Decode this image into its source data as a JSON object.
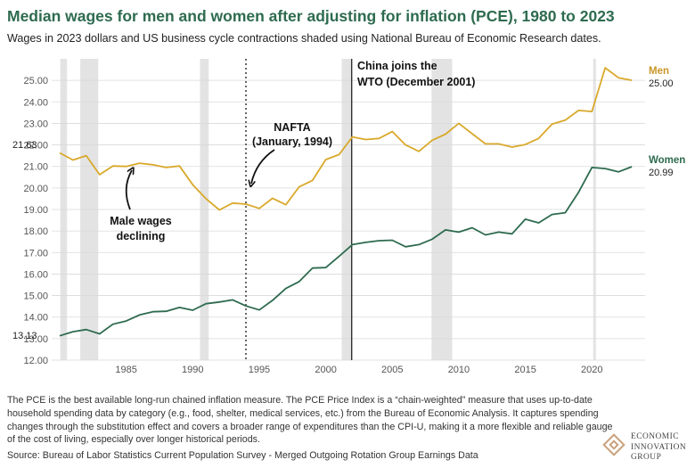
{
  "header": {
    "title": "Median wages for men and women after adjusting for inflation (PCE), 1980 to 2023",
    "subtitle": "Wages in 2023 dollars and US business cycle contractions shaded using National Bureau of Economic Research dates."
  },
  "chart_data": {
    "type": "line",
    "x": [
      1980,
      1981,
      1982,
      1983,
      1984,
      1985,
      1986,
      1987,
      1988,
      1989,
      1990,
      1991,
      1992,
      1993,
      1994,
      1995,
      1996,
      1997,
      1998,
      1999,
      2000,
      2001,
      2002,
      2003,
      2004,
      2005,
      2006,
      2007,
      2008,
      2009,
      2010,
      2011,
      2012,
      2013,
      2014,
      2015,
      2016,
      2017,
      2018,
      2019,
      2020,
      2021,
      2022,
      2023
    ],
    "series": [
      {
        "name": "Men",
        "color": "#d9a92b",
        "values": [
          21.63,
          21.3,
          21.5,
          20.62,
          21.02,
          21.0,
          21.15,
          21.08,
          20.95,
          21.02,
          20.15,
          19.5,
          18.98,
          19.3,
          19.25,
          19.05,
          19.52,
          19.22,
          20.05,
          20.35,
          21.32,
          21.55,
          22.37,
          22.25,
          22.3,
          22.62,
          22.0,
          21.7,
          22.22,
          22.5,
          23.0,
          22.52,
          22.05,
          22.05,
          21.9,
          22.02,
          22.3,
          22.97,
          23.15,
          23.6,
          23.55,
          25.58,
          25.12,
          25.0
        ]
      },
      {
        "name": "Women",
        "color": "#2e6b4f",
        "values": [
          13.13,
          13.32,
          13.42,
          13.22,
          13.67,
          13.82,
          14.1,
          14.25,
          14.27,
          14.45,
          14.32,
          14.62,
          14.7,
          14.8,
          14.52,
          14.33,
          14.78,
          15.33,
          15.65,
          16.28,
          16.3,
          16.82,
          17.37,
          17.47,
          17.55,
          17.57,
          17.27,
          17.37,
          17.62,
          18.05,
          17.95,
          18.15,
          17.82,
          17.95,
          17.87,
          18.55,
          18.38,
          18.77,
          18.85,
          19.8,
          20.95,
          20.9,
          20.75,
          20.99
        ]
      }
    ],
    "recessions": [
      [
        1980.05,
        1980.55
      ],
      [
        1981.55,
        1982.9
      ],
      [
        1990.55,
        1991.2
      ],
      [
        2001.2,
        2001.9
      ],
      [
        2007.95,
        2009.5
      ],
      [
        2020.1,
        2020.3
      ]
    ],
    "ylim": [
      12.0,
      26.0
    ],
    "xlim": [
      1979.4,
      2024.0
    ],
    "yticks": [
      "12.00",
      "13.00",
      "14.00",
      "15.00",
      "16.00",
      "17.00",
      "18.00",
      "19.00",
      "20.00",
      "21.00",
      "22.00",
      "23.00",
      "24.00",
      "25.00"
    ],
    "ytick_values": [
      12,
      13,
      14,
      15,
      16,
      17,
      18,
      19,
      20,
      21,
      22,
      23,
      24,
      25
    ],
    "xticks": [
      "1985",
      "1990",
      "1995",
      "2000",
      "2005",
      "2010",
      "2015",
      "2020"
    ],
    "xtick_values": [
      1985,
      1990,
      1995,
      2000,
      2005,
      2010,
      2015,
      2020
    ],
    "nafta_year": 1994,
    "wto_year": 2001.95,
    "labels": {
      "men_name": "Men",
      "men_end": "25.00",
      "women_name": "Women",
      "women_end": "20.99",
      "men_start": "21.63",
      "women_start": "13.13"
    },
    "annotations": {
      "wto_line1": "China joins the",
      "wto_line2": "WTO (December 2001)",
      "nafta_line1": "NAFTA",
      "nafta_line2": "(January, 1994)",
      "male_line1": "Male wages",
      "male_line2": "declining"
    }
  },
  "footer": {
    "note": "The PCE is the best available long-run chained inflation measure. The PCE Price Index is a “chain-weighted” measure that uses up-to-date household spending data by category (e.g., food, shelter, medical services, etc.) from the Bureau of Economic Analysis. It captures spending changes through the substitution effect and covers a broader range of expenditures than the CPI-U, making it a more flexible and reliable gauge of the cost of living, especially over longer historical periods.",
    "source": "Source: Bureau of Labor Statistics Current Population Survey - Merged Outgoing Rotation Group Earnings Data",
    "logo_line1": "ECONOMIC",
    "logo_line2": "INNOVATION",
    "logo_line3": "GROUP"
  }
}
